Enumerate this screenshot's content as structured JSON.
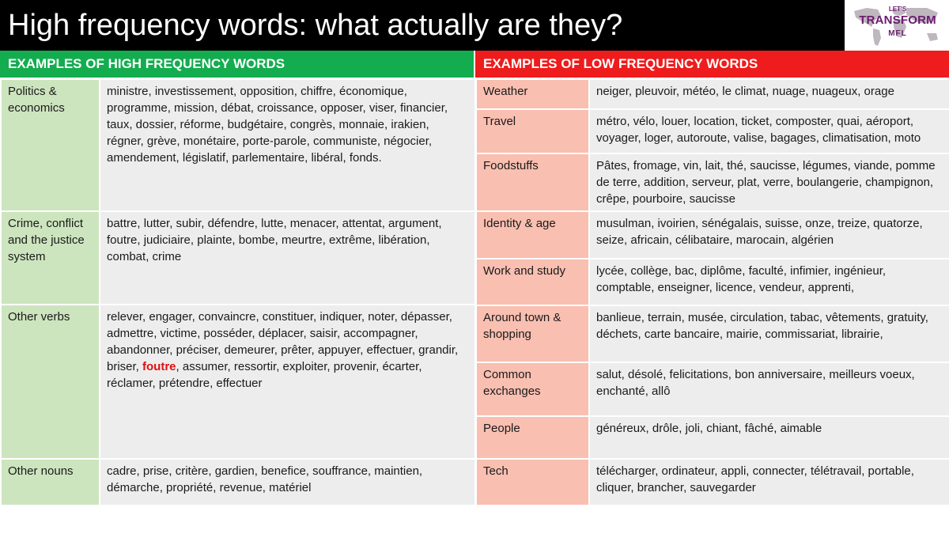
{
  "title": "High frequency words: what actually are they?",
  "logo": {
    "line1": "LET'S",
    "line2": "TRANSFORM",
    "line3": "MFL"
  },
  "colors": {
    "high_header": "#13ad4f",
    "low_header": "#ee1c1c",
    "high_category": "#cde5be",
    "low_category": "#f9bfb1",
    "cell": "#ededed",
    "highlight": "#e01010"
  },
  "high": {
    "header": "EXAMPLES OF HIGH FREQUENCY WORDS",
    "rows": [
      {
        "category": "Politics & economics",
        "words": "ministre, investissement, opposition, chiffre, économique, programme, mission, débat, croissance, opposer, viser, financier, taux, dossier, réforme, budgétaire, congrès, monnaie, irakien, régner, grève, monétaire, porte-parole, communiste, négocier, amendement, législatif, parlementaire, libéral, fonds."
      },
      {
        "category": "Crime, conflict and the justice system",
        "words": "battre, lutter, subir, défendre, lutte, menacer, attentat, argument, foutre, judiciaire, plainte, bombe, meurtre, extrême, libération, combat, crime"
      },
      {
        "category": "Other verbs",
        "words_before": "relever, engager, convaincre, constituer, indiquer, noter, dépasser, admettre, victime, posséder, déplacer, saisir, accompagner, abandonner, préciser, demeurer, prêter, appuyer, effectuer, grandir, briser, ",
        "words_highlight": "foutre",
        "words_after": ", assumer, ressortir, exploiter, provenir, écarter, réclamer, prétendre, effectuer"
      },
      {
        "category": "Other nouns",
        "words": "cadre, prise, critère, gardien, benefice, souffrance, maintien, démarche, propriété, revenue, matériel"
      }
    ]
  },
  "low": {
    "header": "EXAMPLES OF LOW FREQUENCY WORDS",
    "rows": [
      {
        "category": "Weather",
        "words": "neiger, pleuvoir, météo, le climat, nuage, nuageux, orage"
      },
      {
        "category": "Travel",
        "words": "métro, vélo, louer, location, ticket, composter, quai, aéroport, voyager, loger, autoroute, valise, bagages, climatisation, moto"
      },
      {
        "category": "Foodstuffs",
        "words": "Pâtes, fromage, vin, lait, thé, saucisse, légumes, viande, pomme de terre, addition, serveur, plat, verre, boulangerie, champignon, crêpe, pourboire, saucisse"
      },
      {
        "category": "Identity & age",
        "words": "musulman, ivoirien, sénégalais, suisse, onze, treize, quatorze, seize, africain, célibataire, marocain, algérien"
      },
      {
        "category": "Work and study",
        "words": "lycée, collège, bac, diplôme, faculté, infimier, ingénieur, comptable, enseigner, licence, vendeur, apprenti,"
      },
      {
        "category": "Around town & shopping",
        "words": "banlieue, terrain, musée, circulation, tabac, vêtements, gratuity, déchets, carte bancaire, mairie, commissariat, librairie,"
      },
      {
        "category": "Common exchanges",
        "words": "salut, désolé, felicitations, bon anniversaire, meilleurs voeux, enchanté, allô"
      },
      {
        "category": "People",
        "words": "généreux, drôle, joli, chiant, fâché, aimable"
      },
      {
        "category": "Tech",
        "words": "télécharger, ordinateur, appli, connecter, télétravail, portable, cliquer, brancher, sauvegarder"
      }
    ]
  }
}
